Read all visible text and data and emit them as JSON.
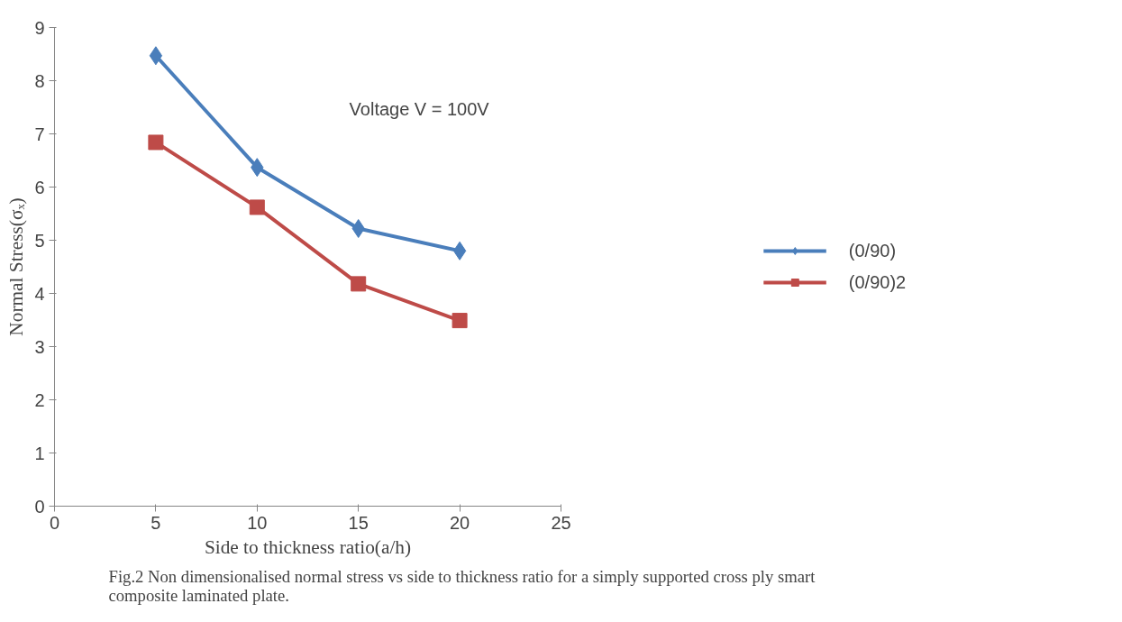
{
  "chart_data": {
    "type": "line",
    "xlabel": "Side to thickness ratio(a/h)",
    "ylabel": "Normal Stress(σₓ)",
    "x": [
      5,
      10,
      15,
      20
    ],
    "series": [
      {
        "name": "(0/90)",
        "color": "#4a7ebb",
        "marker": "diamond",
        "values": [
          8.47,
          6.37,
          5.22,
          4.8
        ]
      },
      {
        "name": "(0/90)2",
        "color": "#be4b48",
        "marker": "square",
        "values": [
          6.84,
          5.62,
          4.18,
          3.49
        ]
      }
    ],
    "xlim": [
      0,
      25
    ],
    "xticks": [
      0,
      5,
      10,
      15,
      20,
      25
    ],
    "ylim": [
      0,
      9
    ],
    "yticks": [
      0,
      1,
      2,
      3,
      4,
      5,
      6,
      7,
      8,
      9
    ],
    "grid": false,
    "legend": "right",
    "line_style": "solid",
    "annotations": [
      "Voltage V = 100V",
      "Fig.2 Non dimensionalised normal stress vs side to thickness  ratio for a simply supported cross ply smart\ncomposite laminated plate."
    ]
  }
}
